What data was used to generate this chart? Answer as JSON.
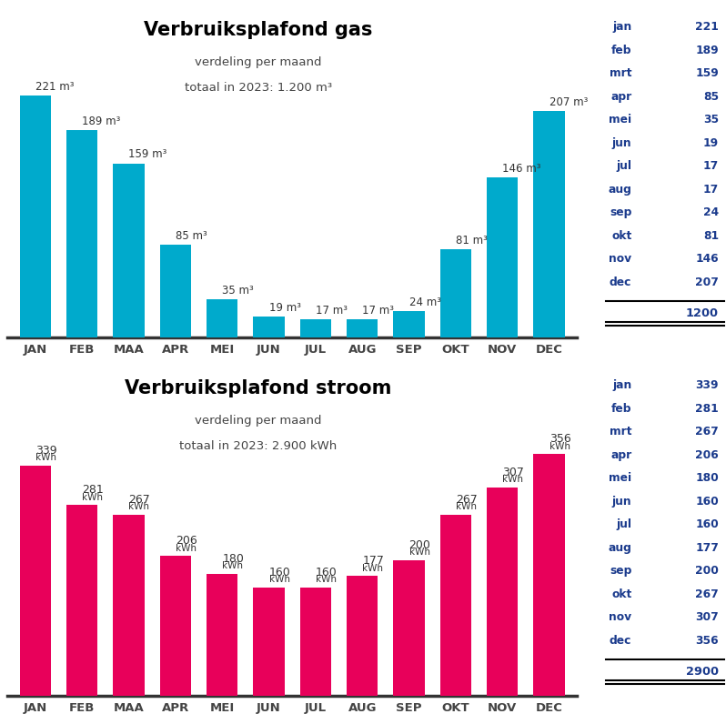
{
  "gas": {
    "title": "Verbruiksplafond gas",
    "subtitle1": "verdeling per maand",
    "subtitle2": "totaal in 2023: 1.200 m³",
    "months": [
      "JAN",
      "FEB",
      "MAA",
      "APR",
      "MEI",
      "JUN",
      "JUL",
      "AUG",
      "SEP",
      "OKT",
      "NOV",
      "DEC"
    ],
    "months_lower": [
      "jan",
      "feb",
      "mrt",
      "apr",
      "mei",
      "jun",
      "jul",
      "aug",
      "sep",
      "okt",
      "nov",
      "dec"
    ],
    "values": [
      221,
      189,
      159,
      85,
      35,
      19,
      17,
      17,
      24,
      81,
      146,
      207
    ],
    "unit": "m³",
    "unit_inline": true,
    "total": "1200",
    "bar_color": "#00AACC",
    "label_color": "#333333",
    "title_color": "#000000",
    "table_label_color": "#1a3a8c",
    "table_value_color": "#1a3a8c"
  },
  "stroom": {
    "title": "Verbruiksplafond stroom",
    "subtitle1": "verdeling per maand",
    "subtitle2": "totaal in 2023: 2.900 kWh",
    "months": [
      "JAN",
      "FEB",
      "MAA",
      "APR",
      "MEI",
      "JUN",
      "JUL",
      "AUG",
      "SEP",
      "OKT",
      "NOV",
      "DEC"
    ],
    "months_lower": [
      "jan",
      "feb",
      "mrt",
      "apr",
      "mei",
      "jun",
      "jul",
      "aug",
      "sep",
      "okt",
      "nov",
      "dec"
    ],
    "values": [
      339,
      281,
      267,
      206,
      180,
      160,
      160,
      177,
      200,
      267,
      307,
      356
    ],
    "unit": "kWh",
    "unit_inline": false,
    "total": "2900",
    "bar_color": "#E8005A",
    "label_color": "#333333",
    "title_color": "#000000",
    "table_label_color": "#1a3a8c",
    "table_value_color": "#1a3a8c"
  },
  "background_color": "#ffffff"
}
